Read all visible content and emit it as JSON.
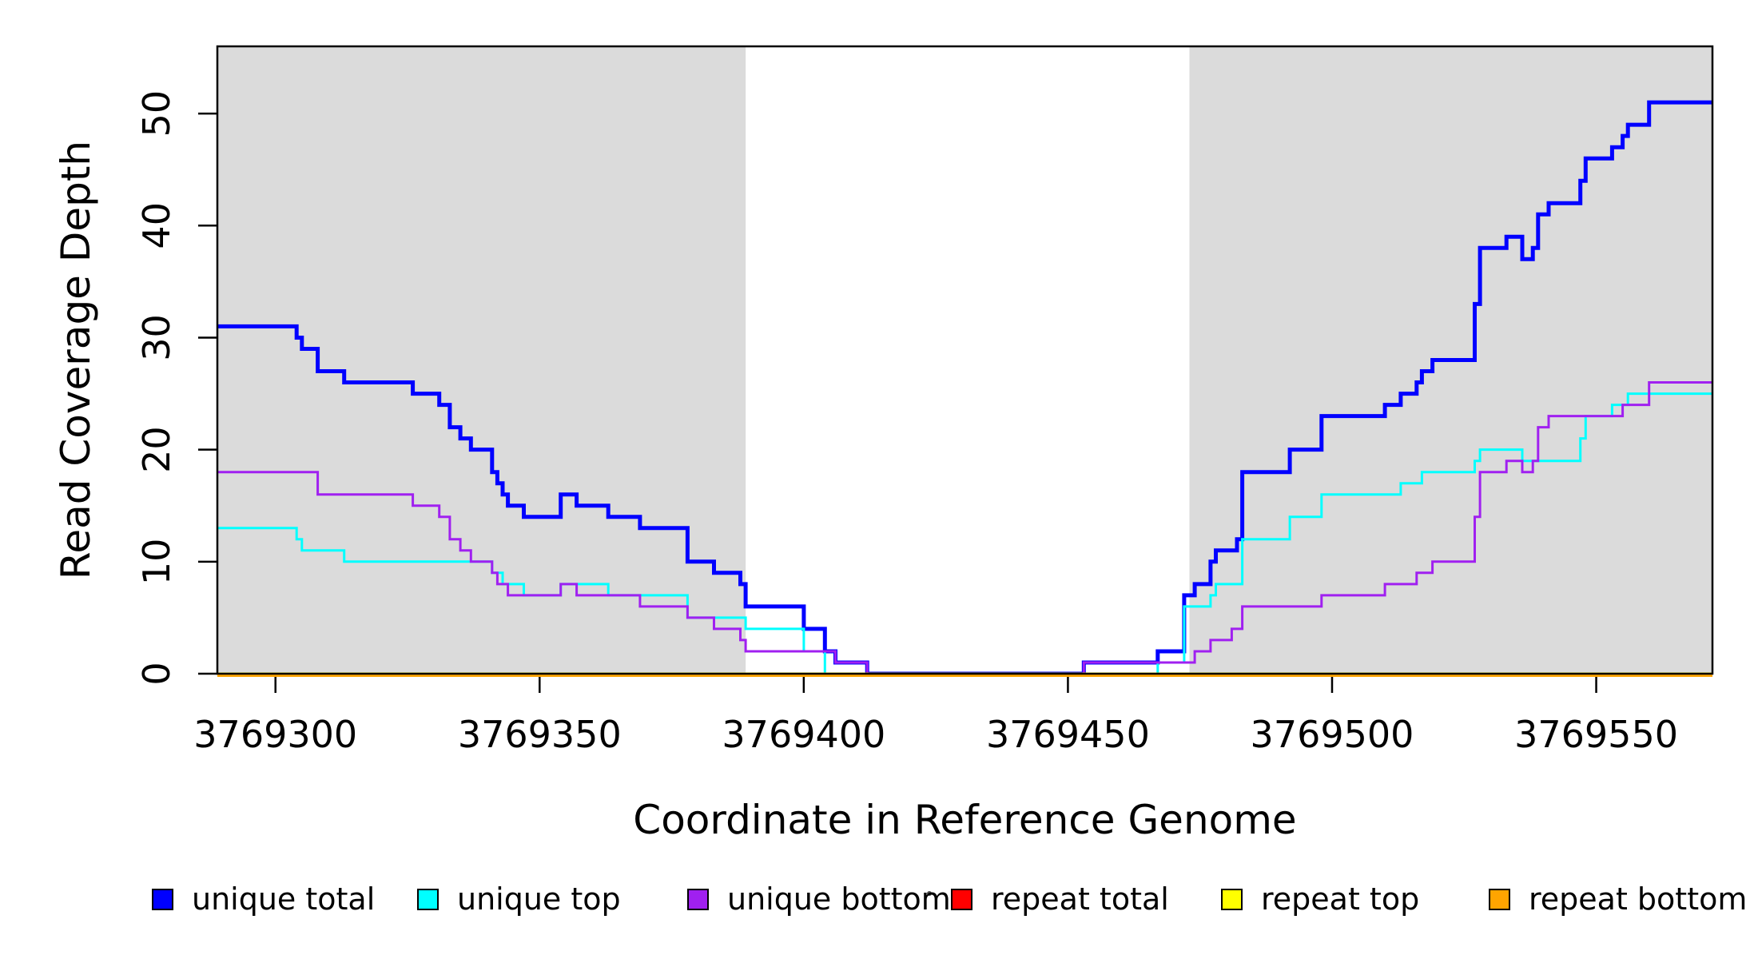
{
  "figure": {
    "xlabel": "Coordinate in Reference Genome",
    "ylabel": "Read Coverage Depth"
  },
  "legend": {
    "items": [
      {
        "label": "unique total",
        "color": "#0000FF"
      },
      {
        "label": "unique top",
        "color": "#00FFFF"
      },
      {
        "label": "unique bottom",
        "color": "#A020F0"
      },
      {
        "label": "repeat total",
        "color": "#FF0000"
      },
      {
        "label": "repeat top",
        "color": "#FFFF00"
      },
      {
        "label": "repeat bottom",
        "color": "#FFA500"
      }
    ]
  },
  "chart_data": {
    "type": "line",
    "subtype": "step-coverage",
    "title": "",
    "xlabel": "Coordinate in Reference Genome",
    "ylabel": "Read Coverage Depth",
    "xlim": [
      3769289,
      3769572
    ],
    "ylim": [
      0,
      56
    ],
    "xticks": [
      3769300,
      3769350,
      3769400,
      3769450,
      3769500,
      3769550
    ],
    "yticks": [
      0,
      10,
      20,
      30,
      40,
      50
    ],
    "grid": false,
    "legend_position": "bottom",
    "panel_background": "#ffffff",
    "shaded_regions": {
      "color": "#DBDBDB",
      "x_ranges": [
        [
          3769289,
          3769389
        ],
        [
          3769473,
          3769572
        ]
      ]
    },
    "series": [
      {
        "name": "unique total",
        "color": "#0000FF",
        "width": 5,
        "points": [
          [
            3769289,
            31
          ],
          [
            3769304,
            30
          ],
          [
            3769305,
            29
          ],
          [
            3769308,
            27
          ],
          [
            3769313,
            26
          ],
          [
            3769326,
            25
          ],
          [
            3769331,
            24
          ],
          [
            3769333,
            22
          ],
          [
            3769335,
            21
          ],
          [
            3769337,
            20
          ],
          [
            3769341,
            18
          ],
          [
            3769342,
            17
          ],
          [
            3769343,
            16
          ],
          [
            3769344,
            15
          ],
          [
            3769347,
            14
          ],
          [
            3769354,
            16
          ],
          [
            3769357,
            15
          ],
          [
            3769363,
            14
          ],
          [
            3769369,
            13
          ],
          [
            3769378,
            10
          ],
          [
            3769383,
            9
          ],
          [
            3769388,
            8
          ],
          [
            3769389,
            6
          ],
          [
            3769400,
            4
          ],
          [
            3769404,
            2
          ],
          [
            3769406,
            1
          ],
          [
            3769412,
            0
          ],
          [
            3769453,
            1
          ],
          [
            3769467,
            2
          ],
          [
            3769472,
            7
          ],
          [
            3769474,
            8
          ],
          [
            3769477,
            10
          ],
          [
            3769478,
            11
          ],
          [
            3769482,
            12
          ],
          [
            3769483,
            18
          ],
          [
            3769492,
            20
          ],
          [
            3769498,
            23
          ],
          [
            3769510,
            24
          ],
          [
            3769513,
            25
          ],
          [
            3769516,
            26
          ],
          [
            3769517,
            27
          ],
          [
            3769519,
            28
          ],
          [
            3769527,
            33
          ],
          [
            3769528,
            38
          ],
          [
            3769533,
            39
          ],
          [
            3769536,
            37
          ],
          [
            3769538,
            38
          ],
          [
            3769539,
            41
          ],
          [
            3769541,
            42
          ],
          [
            3769547,
            44
          ],
          [
            3769548,
            46
          ],
          [
            3769553,
            47
          ],
          [
            3769555,
            48
          ],
          [
            3769556,
            49
          ],
          [
            3769560,
            51
          ],
          [
            3769572,
            51
          ]
        ]
      },
      {
        "name": "unique top",
        "color": "#00FFFF",
        "width": 3,
        "points": [
          [
            3769289,
            13
          ],
          [
            3769304,
            12
          ],
          [
            3769305,
            11
          ],
          [
            3769313,
            10
          ],
          [
            3769341,
            9
          ],
          [
            3769343,
            8
          ],
          [
            3769347,
            7
          ],
          [
            3769354,
            8
          ],
          [
            3769363,
            7
          ],
          [
            3769378,
            5
          ],
          [
            3769389,
            4
          ],
          [
            3769400,
            2
          ],
          [
            3769404,
            0
          ],
          [
            3769467,
            1
          ],
          [
            3769472,
            6
          ],
          [
            3769477,
            7
          ],
          [
            3769478,
            8
          ],
          [
            3769483,
            12
          ],
          [
            3769492,
            14
          ],
          [
            3769498,
            16
          ],
          [
            3769513,
            17
          ],
          [
            3769517,
            18
          ],
          [
            3769527,
            19
          ],
          [
            3769528,
            20
          ],
          [
            3769536,
            19
          ],
          [
            3769547,
            21
          ],
          [
            3769548,
            23
          ],
          [
            3769553,
            24
          ],
          [
            3769556,
            25
          ],
          [
            3769572,
            25
          ]
        ]
      },
      {
        "name": "unique bottom",
        "color": "#A020F0",
        "width": 3,
        "points": [
          [
            3769289,
            18
          ],
          [
            3769308,
            16
          ],
          [
            3769326,
            15
          ],
          [
            3769331,
            14
          ],
          [
            3769333,
            12
          ],
          [
            3769335,
            11
          ],
          [
            3769337,
            10
          ],
          [
            3769341,
            9
          ],
          [
            3769342,
            8
          ],
          [
            3769344,
            7
          ],
          [
            3769354,
            8
          ],
          [
            3769357,
            7
          ],
          [
            3769369,
            6
          ],
          [
            3769378,
            5
          ],
          [
            3769383,
            4
          ],
          [
            3769388,
            3
          ],
          [
            3769389,
            2
          ],
          [
            3769406,
            1
          ],
          [
            3769412,
            0
          ],
          [
            3769453,
            1
          ],
          [
            3769474,
            2
          ],
          [
            3769477,
            3
          ],
          [
            3769481,
            4
          ],
          [
            3769483,
            6
          ],
          [
            3769498,
            7
          ],
          [
            3769510,
            8
          ],
          [
            3769516,
            9
          ],
          [
            3769519,
            10
          ],
          [
            3769527,
            14
          ],
          [
            3769528,
            18
          ],
          [
            3769533,
            19
          ],
          [
            3769536,
            18
          ],
          [
            3769538,
            19
          ],
          [
            3769539,
            22
          ],
          [
            3769541,
            23
          ],
          [
            3769555,
            24
          ],
          [
            3769560,
            26
          ],
          [
            3769572,
            26
          ]
        ]
      },
      {
        "name": "repeat total",
        "color": "#FF0000",
        "width": 3,
        "points": [
          [
            3769289,
            0
          ],
          [
            3769572,
            0
          ]
        ]
      },
      {
        "name": "repeat top",
        "color": "#FFFF00",
        "width": 3,
        "points": [
          [
            3769289,
            0
          ],
          [
            3769572,
            0
          ]
        ]
      },
      {
        "name": "repeat bottom",
        "color": "#FFA500",
        "width": 4,
        "points": [
          [
            3769289,
            0
          ],
          [
            3769572,
            0
          ]
        ]
      }
    ]
  }
}
